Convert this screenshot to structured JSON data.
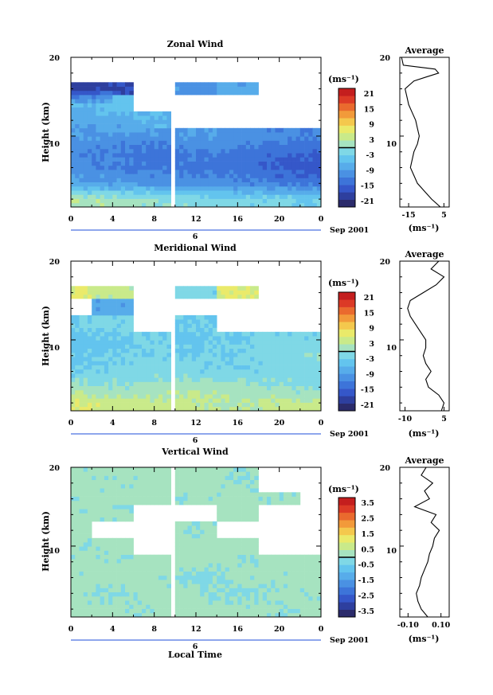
{
  "figure": {
    "xlabel": "Local Time",
    "date_label": "Sep 2001",
    "xticks": [
      "0",
      "4",
      "8",
      "12",
      "16",
      "20",
      "0"
    ],
    "day_marker": "6"
  },
  "chart_data": [
    {
      "type": "heatmap",
      "title": "Zonal Wind",
      "ylabel": "Height (km)",
      "xlim": [
        0,
        24
      ],
      "ylim": [
        1,
        20
      ],
      "yticks": [
        "10",
        "20"
      ],
      "colorbar": {
        "unit": "(ms⁻¹)",
        "ticks": [
          "21",
          "15",
          "9",
          "3",
          "-3",
          "-9",
          "-15",
          "-21"
        ],
        "range": [
          -24,
          24
        ]
      },
      "zero_contour_height_km": 10.5,
      "data_gap_hours": [
        9.6,
        10.1
      ],
      "field": {
        "hours": [
          0,
          4,
          8,
          12,
          16,
          20,
          24
        ],
        "heights_km": [
          2,
          4,
          6,
          8,
          10,
          12,
          14,
          16,
          18
        ],
        "values": [
          [
            3,
            2,
            0,
            -1,
            -2,
            -2,
            -3
          ],
          [
            -8,
            -9,
            -10,
            -10,
            -11,
            -12,
            -13
          ],
          [
            -10,
            -12,
            -13,
            -13,
            -14,
            -16,
            -17
          ],
          [
            -11,
            -12,
            -13,
            -12,
            -13,
            -14,
            -15
          ],
          [
            -9,
            -10,
            -10,
            -9,
            -10,
            -11,
            -12
          ],
          [
            -8,
            -7,
            -6,
            null,
            null,
            null,
            null
          ],
          [
            -6,
            -5,
            null,
            null,
            null,
            null,
            null
          ],
          [
            -20,
            -18,
            null,
            -10,
            -8,
            null,
            null
          ],
          [
            null,
            null,
            null,
            null,
            null,
            null,
            null
          ]
        ]
      },
      "average_profile": {
        "title": "Average",
        "xlabel": "(ms⁻¹)",
        "xticks": [
          "-15",
          "5"
        ],
        "xlim": [
          -20,
          8
        ],
        "heights_km": [
          1,
          2,
          3,
          4,
          5,
          6,
          7,
          8,
          9,
          10,
          11,
          12,
          13,
          14,
          15,
          16,
          17,
          17.5,
          18,
          18.5,
          19,
          20
        ],
        "values": [
          3,
          -2,
          -6,
          -10,
          -12,
          -14,
          -13,
          -12,
          -10,
          -9,
          -10,
          -11,
          -13,
          -15,
          -16,
          -17,
          -12,
          -5,
          2,
          0,
          -18,
          -19
        ]
      }
    },
    {
      "type": "heatmap",
      "title": "Meridional Wind",
      "ylabel": "Height (km)",
      "xlim": [
        0,
        24
      ],
      "ylim": [
        1,
        20
      ],
      "yticks": [
        "10",
        "20"
      ],
      "colorbar": {
        "unit": "(ms⁻¹)",
        "ticks": [
          "21",
          "15",
          "9",
          "3",
          "-3",
          "-9",
          "-15",
          "-21"
        ],
        "range": [
          -24,
          24
        ]
      },
      "zero_contour_height_km": 10.5,
      "data_gap_hours": [
        9.6,
        10.1
      ],
      "field": {
        "hours": [
          0,
          4,
          8,
          12,
          16,
          20,
          24
        ],
        "heights_km": [
          2,
          4,
          6,
          8,
          10,
          12,
          14,
          16,
          18
        ],
        "values": [
          [
            6,
            5,
            4,
            4,
            3,
            4,
            5
          ],
          [
            1,
            0,
            2,
            2,
            1,
            0,
            -1
          ],
          [
            -3,
            -2,
            -1,
            -2,
            -3,
            -2,
            -1
          ],
          [
            -4,
            -3,
            -2,
            -3,
            -2,
            -1,
            0
          ],
          [
            -5,
            -4,
            -3,
            -4,
            -3,
            -2,
            -2
          ],
          [
            -3,
            -2,
            null,
            -3,
            null,
            null,
            null
          ],
          [
            null,
            -8,
            null,
            null,
            null,
            null,
            null
          ],
          [
            6,
            4,
            null,
            -2,
            6,
            null,
            null
          ],
          [
            null,
            null,
            null,
            null,
            null,
            null,
            null
          ]
        ]
      },
      "average_profile": {
        "title": "Average",
        "xlabel": "(ms⁻¹)",
        "xticks": [
          "-10",
          "5"
        ],
        "xlim": [
          -12,
          7
        ],
        "heights_km": [
          1,
          2,
          3,
          4,
          5,
          6,
          7,
          8,
          9,
          10,
          11,
          12,
          13,
          14,
          15,
          16,
          17,
          18,
          19,
          20
        ],
        "values": [
          4,
          5,
          3,
          -1,
          -2,
          0,
          -2,
          -3,
          -2,
          -2,
          -4,
          -6,
          -8,
          -9,
          -8,
          -3,
          2,
          5,
          0,
          3
        ]
      }
    },
    {
      "type": "heatmap",
      "title": "Vertical Wind",
      "ylabel": "Height (km)",
      "xlim": [
        0,
        24
      ],
      "ylim": [
        1,
        20
      ],
      "yticks": [
        "10",
        "20"
      ],
      "colorbar": {
        "unit": "(ms⁻¹)",
        "ticks": [
          "3.5",
          "2.5",
          "1.5",
          "0.5",
          "-0.5",
          "-1.5",
          "-2.5",
          "-3.5"
        ],
        "range": [
          -4,
          4
        ]
      },
      "zero_contour_height_km": 10.5,
      "data_gap_hours": [
        9.6,
        10.1
      ],
      "field": {
        "hours": [
          0,
          4,
          8,
          12,
          16,
          20,
          24
        ],
        "heights_km": [
          2,
          4,
          6,
          8,
          10,
          12,
          14,
          16,
          18
        ],
        "values": [
          [
            0.3,
            0.2,
            0.1,
            0.3,
            0.2,
            0.1,
            0.2
          ],
          [
            0.2,
            -0.1,
            0.3,
            0.1,
            -0.2,
            0.2,
            0.1
          ],
          [
            0.1,
            0.3,
            0.2,
            -0.3,
            0.2,
            0.1,
            0.3
          ],
          [
            0.2,
            0.1,
            0.3,
            0.2,
            0.1,
            0.3,
            0.2
          ],
          [
            0.1,
            0.2,
            null,
            0.2,
            0.3,
            null,
            null
          ],
          [
            0.3,
            null,
            null,
            0.1,
            null,
            null,
            null
          ],
          [
            0.2,
            0.1,
            null,
            null,
            0.2,
            null,
            null
          ],
          [
            0.1,
            0.3,
            0.2,
            0.1,
            0.2,
            0.1,
            null
          ],
          [
            0.2,
            0.1,
            0.2,
            0.3,
            0.1,
            null,
            null
          ]
        ]
      },
      "average_profile": {
        "title": "Average",
        "xlabel": "(ms⁻¹)",
        "xticks": [
          "-0.10",
          "0.10"
        ],
        "xlim": [
          -0.15,
          0.15
        ],
        "heights_km": [
          1,
          2,
          3,
          4,
          5,
          6,
          7,
          8,
          9,
          10,
          11,
          12,
          13,
          14,
          15,
          16,
          17,
          18,
          19,
          20
        ],
        "values": [
          0.02,
          -0.02,
          -0.04,
          -0.05,
          -0.03,
          -0.02,
          0.0,
          0.02,
          0.03,
          0.05,
          0.06,
          0.09,
          0.04,
          0.07,
          -0.06,
          0.03,
          0.0,
          0.05,
          -0.02,
          0.01
        ]
      }
    }
  ]
}
